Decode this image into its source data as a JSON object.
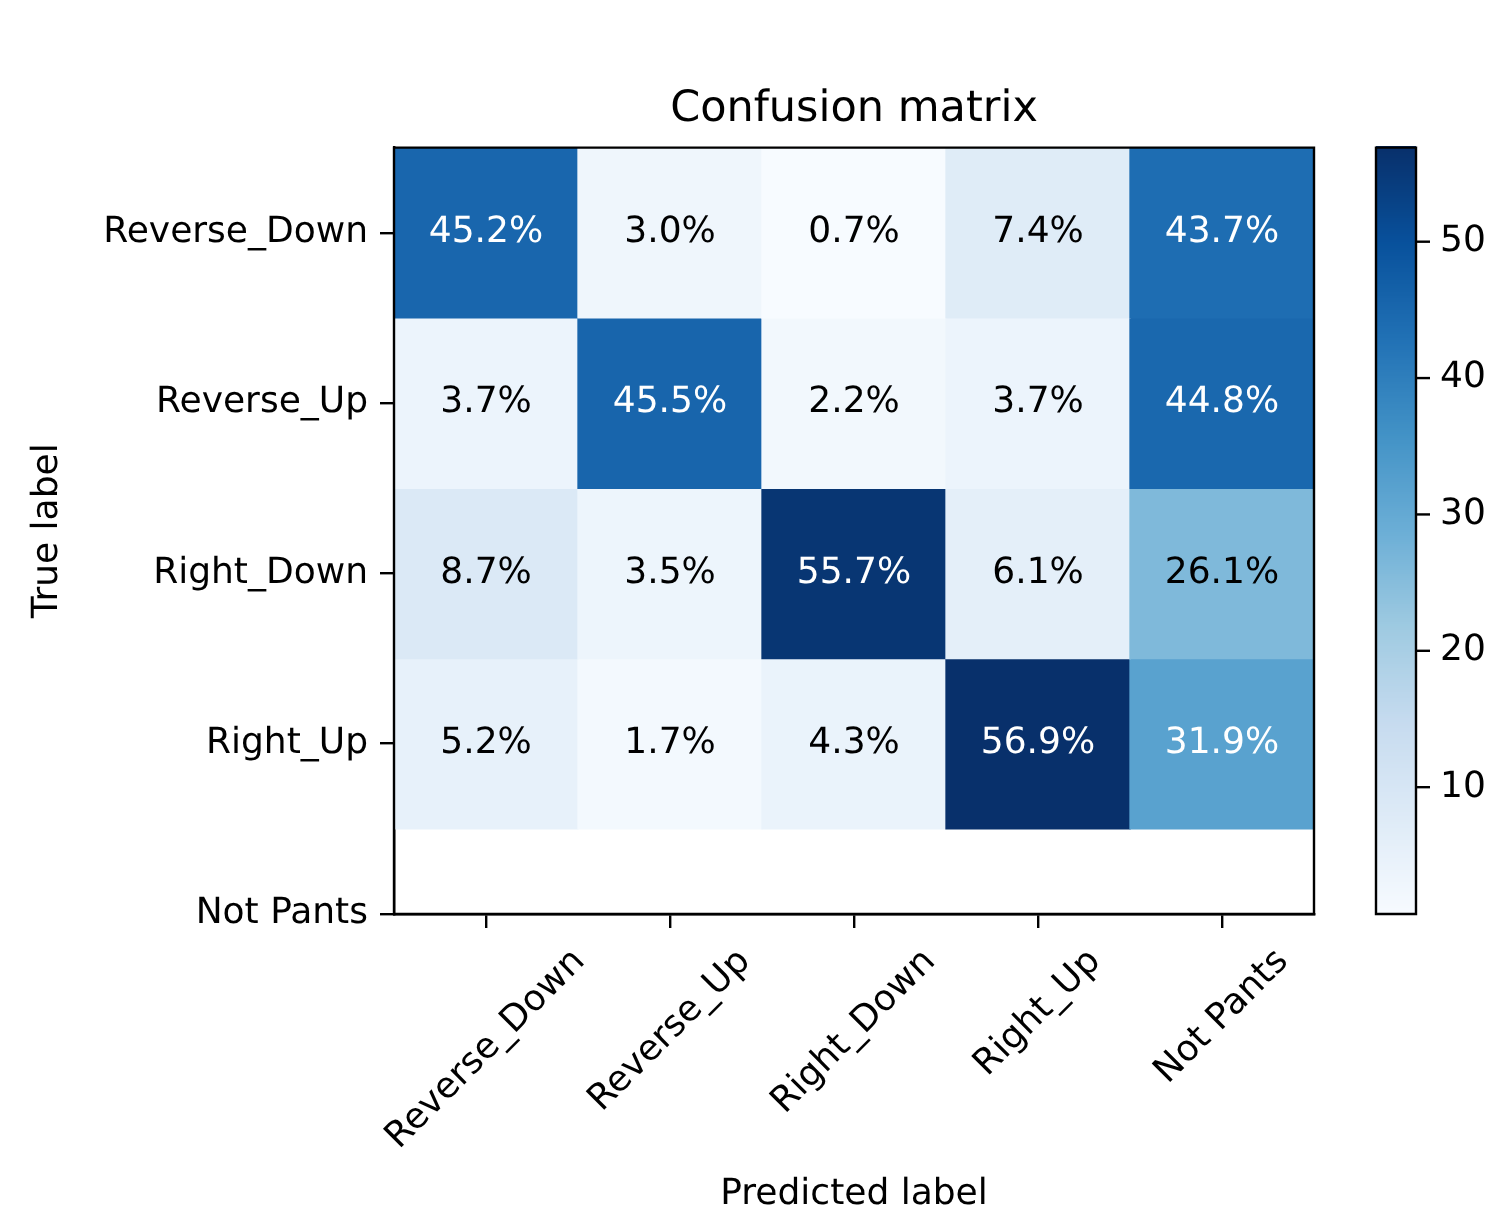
{
  "chart_data": {
    "type": "heatmap",
    "title": "Confusion matrix",
    "xlabel": "Predicted label",
    "ylabel": "True label",
    "categories": [
      "Reverse_Down",
      "Reverse_Up",
      "Right_Down",
      "Right_Up",
      "Not Pants"
    ],
    "y_categories": [
      "Reverse_Down",
      "Reverse_Up",
      "Right_Down",
      "Right_Up",
      "Not Pants"
    ],
    "cells": [
      [
        45.2,
        3.0,
        0.7,
        7.4,
        43.7
      ],
      [
        3.7,
        45.5,
        2.2,
        3.7,
        44.8
      ],
      [
        8.7,
        3.5,
        55.7,
        6.1,
        26.1
      ],
      [
        5.2,
        1.7,
        4.3,
        56.9,
        31.9
      ],
      [
        null,
        null,
        null,
        null,
        null
      ]
    ],
    "cell_labels": [
      [
        "45.2%",
        "3.0%",
        "0.7%",
        "7.4%",
        "43.7%"
      ],
      [
        "3.7%",
        "45.5%",
        "2.2%",
        "3.7%",
        "44.8%"
      ],
      [
        "8.7%",
        "3.5%",
        "55.7%",
        "6.1%",
        "26.1%"
      ],
      [
        "5.2%",
        "1.7%",
        "4.3%",
        "56.9%",
        "31.9%"
      ],
      [
        null,
        null,
        null,
        null,
        null
      ]
    ],
    "clim": [
      0.7,
      56.9
    ],
    "cticks": [
      10,
      20,
      30,
      40,
      50
    ]
  }
}
